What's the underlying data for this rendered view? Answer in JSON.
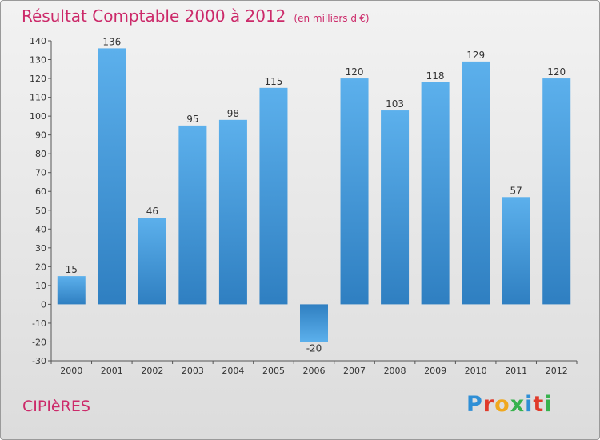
{
  "title": "Résultat Comptable 2000 à 2012",
  "subtitle": "(en milliers d'€)",
  "commune": "CIPIèRES",
  "logo": {
    "letters": [
      {
        "char": "P",
        "color": "#2f8fd6"
      },
      {
        "char": "r",
        "color": "#e03a2a"
      },
      {
        "char": "o",
        "color": "#f0a81e"
      },
      {
        "char": "x",
        "color": "#37b24d"
      },
      {
        "char": "i",
        "color": "#2f8fd6"
      },
      {
        "char": "t",
        "color": "#e03a2a"
      },
      {
        "char": "i",
        "color": "#37b24d"
      }
    ]
  },
  "colors": {
    "title": "#cc2a6a",
    "bar_light": "#5cb0ec",
    "bar_dark": "#2f7fc1"
  },
  "chart_data": {
    "type": "bar",
    "categories": [
      "2000",
      "2001",
      "2002",
      "2003",
      "2004",
      "2005",
      "2006",
      "2007",
      "2008",
      "2009",
      "2010",
      "2011",
      "2012"
    ],
    "values": [
      15,
      136,
      46,
      95,
      98,
      115,
      -20,
      120,
      103,
      118,
      129,
      57,
      120
    ],
    "value_labels": [
      "15",
      "136",
      "46",
      "95",
      "98",
      "115",
      "-20",
      "120",
      "103",
      "118",
      "129",
      "57",
      "120"
    ],
    "ylim": [
      -30,
      140
    ],
    "yticks": [
      140,
      130,
      120,
      110,
      100,
      90,
      80,
      70,
      60,
      50,
      40,
      30,
      20,
      10,
      0,
      -10,
      -20,
      -30
    ],
    "ytick_labels": [
      "140",
      "130",
      "120",
      "110",
      "100",
      "90",
      "80",
      "70",
      "60",
      "50",
      "40",
      "30",
      "20",
      "10",
      "0",
      "-10",
      "-20",
      "-30"
    ],
    "grid": false,
    "legend": "none"
  }
}
